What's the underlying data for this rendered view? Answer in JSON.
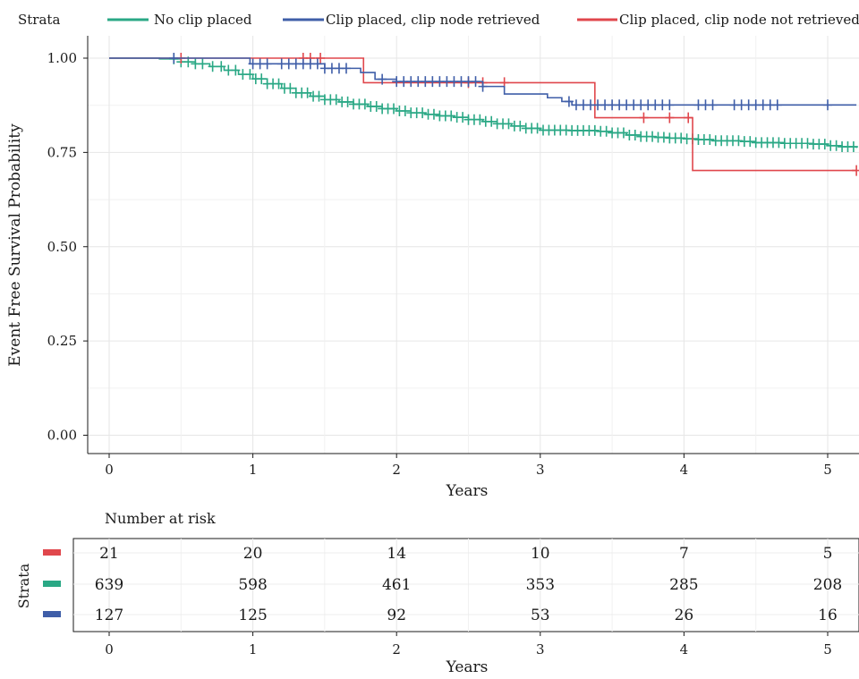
{
  "legend": {
    "title": "Strata",
    "items": [
      {
        "label": "No clip placed",
        "color": "#2aa885"
      },
      {
        "label": "Clip placed, clip node retrieved",
        "color": "#3f5ea8"
      },
      {
        "label": "Clip placed, clip node not retrieved",
        "color": "#e0474c"
      }
    ]
  },
  "chart_data": {
    "type": "line",
    "subtype": "kaplan-meier",
    "xlabel": "Years",
    "ylabel": "Event Free Survival Probability",
    "xlim": [
      0,
      5.2
    ],
    "ylim": [
      0,
      1
    ],
    "x_ticks": [
      "0",
      "1",
      "2",
      "3",
      "4",
      "5"
    ],
    "y_ticks": [
      "0.00",
      "0.25",
      "0.50",
      "0.75",
      "1.00"
    ],
    "grid": true,
    "legend_position": "top",
    "series": [
      {
        "name": "No clip placed",
        "color": "#2aa885",
        "steps": [
          [
            0,
            1.0
          ],
          [
            0.35,
            0.998
          ],
          [
            0.5,
            0.99
          ],
          [
            0.6,
            0.985
          ],
          [
            0.7,
            0.978
          ],
          [
            0.8,
            0.968
          ],
          [
            0.9,
            0.957
          ],
          [
            1.0,
            0.945
          ],
          [
            1.1,
            0.932
          ],
          [
            1.2,
            0.92
          ],
          [
            1.3,
            0.908
          ],
          [
            1.4,
            0.899
          ],
          [
            1.5,
            0.89
          ],
          [
            1.6,
            0.884
          ],
          [
            1.7,
            0.878
          ],
          [
            1.8,
            0.872
          ],
          [
            1.9,
            0.866
          ],
          [
            2.0,
            0.86
          ],
          [
            2.1,
            0.855
          ],
          [
            2.2,
            0.851
          ],
          [
            2.3,
            0.847
          ],
          [
            2.4,
            0.843
          ],
          [
            2.5,
            0.837
          ],
          [
            2.6,
            0.832
          ],
          [
            2.7,
            0.826
          ],
          [
            2.8,
            0.82
          ],
          [
            2.9,
            0.814
          ],
          [
            3.0,
            0.809
          ],
          [
            3.2,
            0.808
          ],
          [
            3.4,
            0.806
          ],
          [
            3.5,
            0.802
          ],
          [
            3.6,
            0.796
          ],
          [
            3.7,
            0.792
          ],
          [
            3.8,
            0.79
          ],
          [
            3.9,
            0.788
          ],
          [
            4.0,
            0.786
          ],
          [
            4.1,
            0.784
          ],
          [
            4.2,
            0.781
          ],
          [
            4.4,
            0.779
          ],
          [
            4.5,
            0.776
          ],
          [
            4.7,
            0.774
          ],
          [
            4.9,
            0.772
          ],
          [
            5.0,
            0.768
          ],
          [
            5.1,
            0.765
          ],
          [
            5.2,
            0.762
          ]
        ],
        "censor_times": [
          0.45,
          0.5,
          0.55,
          0.6,
          0.65,
          0.72,
          0.78,
          0.83,
          0.88,
          0.93,
          0.98,
          1.02,
          1.06,
          1.1,
          1.14,
          1.18,
          1.22,
          1.26,
          1.3,
          1.34,
          1.38,
          1.42,
          1.46,
          1.5,
          1.54,
          1.58,
          1.62,
          1.66,
          1.7,
          1.74,
          1.78,
          1.82,
          1.86,
          1.9,
          1.94,
          1.98,
          2.02,
          2.06,
          2.1,
          2.14,
          2.18,
          2.22,
          2.26,
          2.3,
          2.34,
          2.38,
          2.42,
          2.46,
          2.5,
          2.54,
          2.58,
          2.62,
          2.66,
          2.7,
          2.74,
          2.78,
          2.82,
          2.86,
          2.9,
          2.94,
          2.98,
          3.02,
          3.06,
          3.1,
          3.14,
          3.18,
          3.22,
          3.26,
          3.3,
          3.34,
          3.38,
          3.42,
          3.46,
          3.5,
          3.54,
          3.58,
          3.62,
          3.66,
          3.7,
          3.74,
          3.78,
          3.82,
          3.86,
          3.9,
          3.94,
          3.98,
          4.02,
          4.06,
          4.1,
          4.14,
          4.18,
          4.22,
          4.26,
          4.3,
          4.34,
          4.38,
          4.42,
          4.46,
          4.5,
          4.54,
          4.58,
          4.62,
          4.66,
          4.7,
          4.74,
          4.78,
          4.82,
          4.86,
          4.9,
          4.94,
          4.98,
          5.02,
          5.06,
          5.1,
          5.14,
          5.18
        ]
      },
      {
        "name": "Clip placed, clip node retrieved",
        "color": "#3f5ea8",
        "steps": [
          [
            0,
            1.0
          ],
          [
            0.98,
            0.985
          ],
          [
            1.5,
            0.973
          ],
          [
            1.75,
            0.962
          ],
          [
            1.85,
            0.944
          ],
          [
            2.0,
            0.938
          ],
          [
            2.6,
            0.925
          ],
          [
            2.75,
            0.905
          ],
          [
            3.05,
            0.895
          ],
          [
            3.15,
            0.885
          ],
          [
            3.22,
            0.876
          ],
          [
            5.2,
            0.876
          ]
        ],
        "censor_times": [
          0.45,
          1.0,
          1.05,
          1.1,
          1.2,
          1.25,
          1.3,
          1.35,
          1.4,
          1.45,
          1.5,
          1.55,
          1.6,
          1.65,
          1.9,
          2.0,
          2.05,
          2.1,
          2.15,
          2.2,
          2.25,
          2.3,
          2.35,
          2.4,
          2.45,
          2.5,
          2.55,
          2.6,
          3.2,
          3.25,
          3.3,
          3.35,
          3.4,
          3.45,
          3.5,
          3.55,
          3.6,
          3.65,
          3.7,
          3.75,
          3.8,
          3.85,
          3.9,
          4.1,
          4.15,
          4.2,
          4.35,
          4.4,
          4.45,
          4.5,
          4.55,
          4.6,
          4.65,
          5.0
        ]
      },
      {
        "name": "Clip placed, clip node not retrieved",
        "color": "#e0474c",
        "steps": [
          [
            0,
            1.0
          ],
          [
            1.77,
            0.935
          ],
          [
            3.38,
            0.842
          ],
          [
            4.06,
            0.702
          ],
          [
            5.2,
            0.702
          ]
        ],
        "censor_times": [
          0.5,
          1.35,
          1.4,
          1.47,
          2.5,
          2.6,
          2.75,
          3.72,
          3.9,
          4.03,
          5.2
        ]
      }
    ]
  },
  "risk_table": {
    "title": "Number at risk",
    "ylabel": "Strata",
    "xlabel": "Years",
    "x_ticks": [
      "0",
      "1",
      "2",
      "3",
      "4",
      "5"
    ],
    "rows": [
      {
        "color": "#e0474c",
        "values": [
          "21",
          "20",
          "14",
          "10",
          "7",
          "5"
        ]
      },
      {
        "color": "#2aa885",
        "values": [
          "639",
          "598",
          "461",
          "353",
          "285",
          "208"
        ]
      },
      {
        "color": "#3f5ea8",
        "values": [
          "127",
          "125",
          "92",
          "53",
          "26",
          "16"
        ]
      }
    ]
  }
}
